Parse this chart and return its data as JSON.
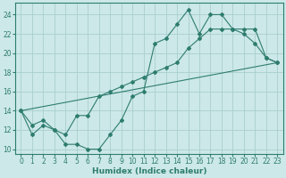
{
  "xlabel": "Humidex (Indice chaleur)",
  "bg_color": "#cce8e8",
  "line_color": "#2e7d6e",
  "grid_color": "#aacece",
  "xlim": [
    -0.5,
    23.5
  ],
  "ylim": [
    9.5,
    25.2
  ],
  "xticks": [
    0,
    1,
    2,
    3,
    4,
    5,
    6,
    7,
    8,
    9,
    10,
    11,
    12,
    13,
    14,
    15,
    16,
    17,
    18,
    19,
    20,
    21,
    22,
    23
  ],
  "yticks": [
    10,
    12,
    14,
    16,
    18,
    20,
    22,
    24
  ],
  "line1_x": [
    0,
    1,
    2,
    3,
    4,
    5,
    6,
    7,
    8,
    9,
    10,
    11,
    12,
    13,
    14,
    15,
    16,
    17,
    18,
    19,
    20,
    21,
    22,
    23
  ],
  "line1_y": [
    14.0,
    11.5,
    12.5,
    12.0,
    10.5,
    10.5,
    10.0,
    10.0,
    11.5,
    13.0,
    15.5,
    16.0,
    21.0,
    21.5,
    23.0,
    24.5,
    22.0,
    24.0,
    24.0,
    22.5,
    22.0,
    21.0,
    19.5,
    19.0
  ],
  "line2_x": [
    0,
    1,
    2,
    3,
    4,
    5,
    6,
    7,
    8,
    9,
    10,
    11,
    12,
    13,
    14,
    15,
    16,
    17,
    18,
    19,
    20,
    21,
    22,
    23
  ],
  "line2_y": [
    14.0,
    12.5,
    13.0,
    12.0,
    11.5,
    13.5,
    13.5,
    15.5,
    16.0,
    16.5,
    17.0,
    17.5,
    18.0,
    18.5,
    19.0,
    20.5,
    21.5,
    22.5,
    22.5,
    22.5,
    22.5,
    22.5,
    19.5,
    19.0
  ],
  "line3_x": [
    0,
    23
  ],
  "line3_y": [
    14.0,
    19.0
  ]
}
